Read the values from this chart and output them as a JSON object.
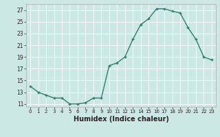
{
  "x": [
    0,
    1,
    2,
    3,
    4,
    5,
    6,
    7,
    8,
    9,
    10,
    11,
    12,
    13,
    14,
    15,
    16,
    17,
    18,
    19,
    20,
    21,
    22,
    23
  ],
  "y": [
    14.0,
    13.0,
    12.5,
    12.0,
    12.0,
    11.0,
    11.0,
    11.2,
    12.0,
    12.0,
    17.5,
    18.0,
    19.0,
    22.0,
    24.5,
    25.5,
    27.2,
    27.2,
    26.8,
    26.5,
    24.0,
    22.0,
    19.0,
    18.5
  ],
  "xlabel": "Humidex (Indice chaleur)",
  "line_color": "#2e7d6e",
  "bg_color": "#cce8e4",
  "grid_color": "#b0d4cf",
  "ylim": [
    10.5,
    28
  ],
  "xlim": [
    -0.5,
    23.5
  ],
  "yticks": [
    11,
    13,
    15,
    17,
    19,
    21,
    23,
    25,
    27
  ],
  "xtick_labels": [
    "0",
    "1",
    "2",
    "3",
    "4",
    "5",
    "6",
    "7",
    "8",
    "9",
    "10",
    "11",
    "12",
    "13",
    "14",
    "15",
    "16",
    "17",
    "18",
    "19",
    "20",
    "21",
    "22",
    "23"
  ]
}
